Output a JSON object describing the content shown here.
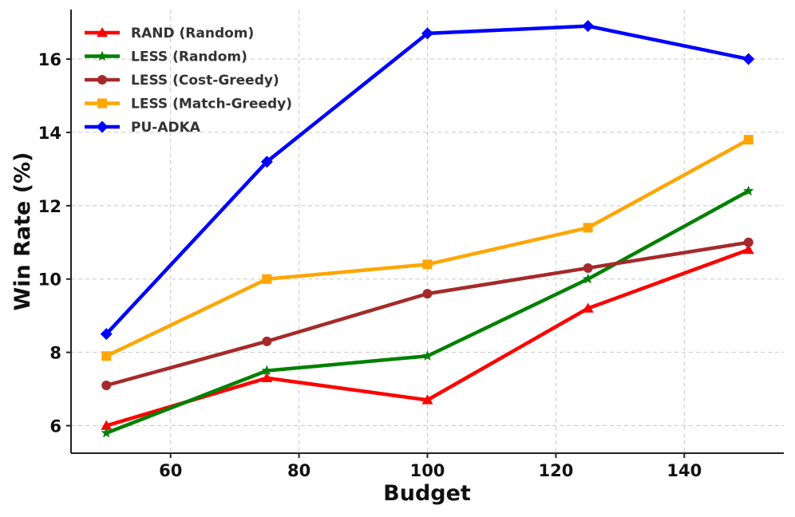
{
  "chart_data": {
    "type": "line",
    "title": "",
    "xlabel": "Budget",
    "ylabel": "Win Rate (%)",
    "x": [
      50,
      75,
      100,
      125,
      150
    ],
    "xlim": [
      44.5,
      155.5
    ],
    "ylim": [
      5.25,
      17.35
    ],
    "xticks": [
      60,
      80,
      100,
      120,
      140
    ],
    "yticks": [
      6,
      8,
      10,
      12,
      14,
      16
    ],
    "grid": true,
    "legend_position": "top-left",
    "series": [
      {
        "name": "RAND (Random)",
        "color": "#ff0000",
        "marker": "triangle",
        "values": [
          6.0,
          7.3,
          6.7,
          9.2,
          10.8
        ]
      },
      {
        "name": "LESS (Random)",
        "color": "#008000",
        "marker": "star",
        "values": [
          5.8,
          7.5,
          7.9,
          10.0,
          12.4
        ]
      },
      {
        "name": "LESS (Cost-Greedy)",
        "color": "#a52a2a",
        "marker": "circle",
        "values": [
          7.1,
          8.3,
          9.6,
          10.3,
          11.0
        ]
      },
      {
        "name": "LESS (Match-Greedy)",
        "color": "#ffa500",
        "marker": "square",
        "values": [
          7.9,
          10.0,
          10.4,
          11.4,
          13.8
        ]
      },
      {
        "name": "PU-ADKA",
        "color": "#0000ff",
        "marker": "diamond",
        "values": [
          8.5,
          13.2,
          16.7,
          16.9,
          16.0
        ]
      }
    ]
  }
}
